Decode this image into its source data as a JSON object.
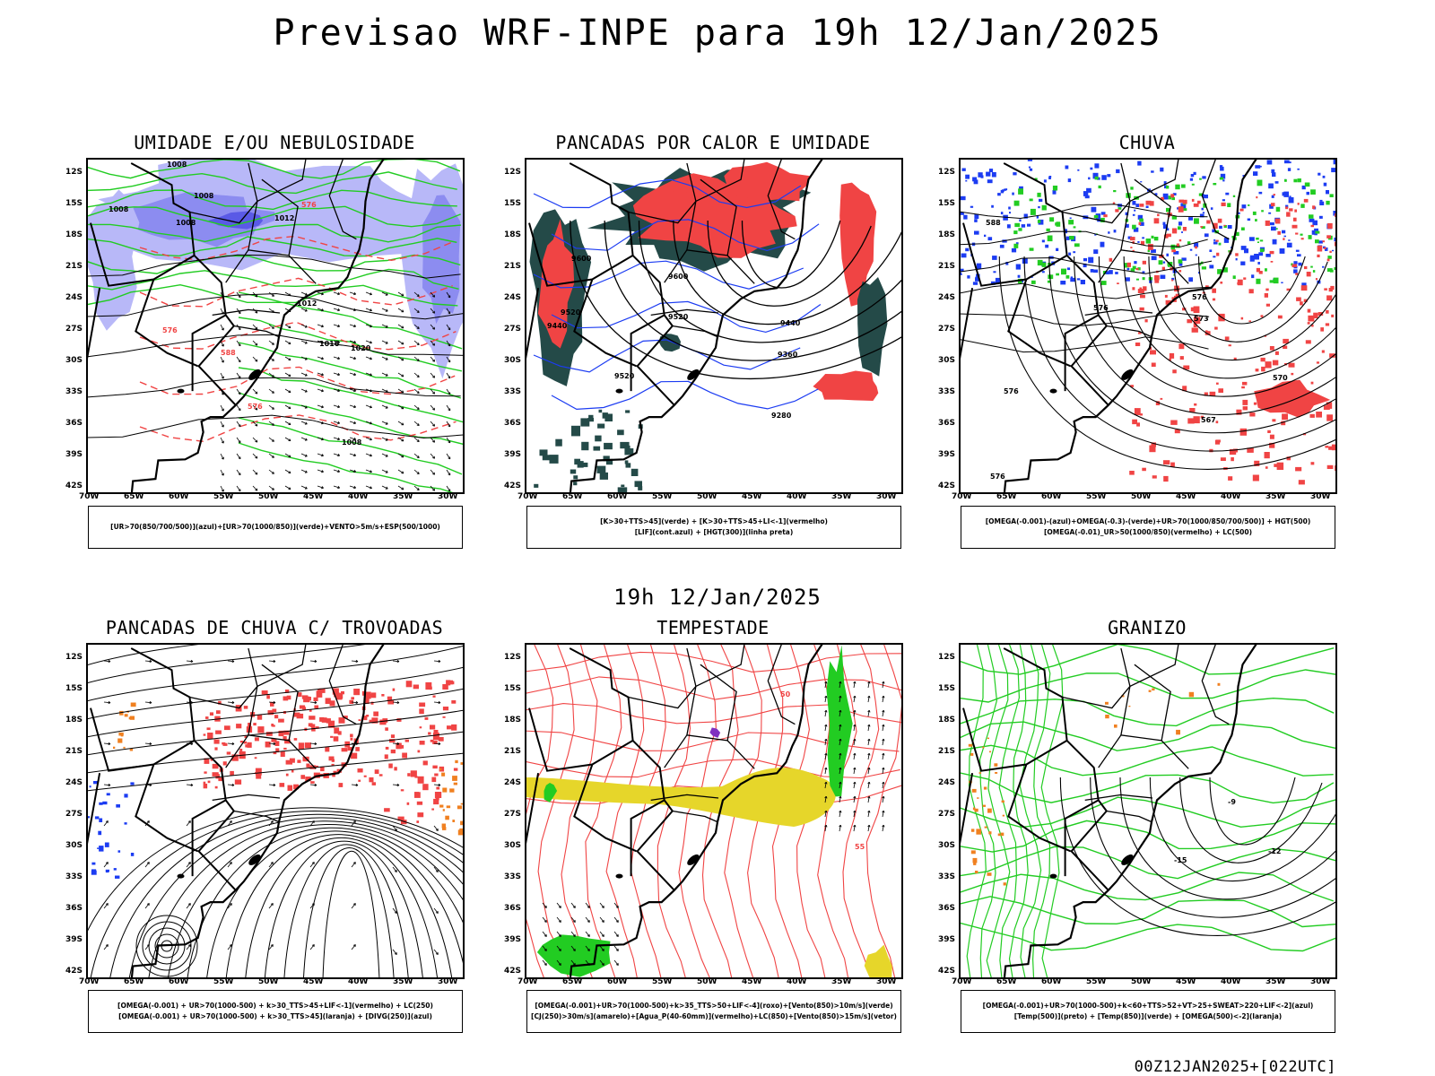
{
  "page": {
    "title": "Previsao WRF-INPE  para 19h 12/Jan/2025",
    "mid_title": "19h 12/Jan/2025",
    "footer": "00Z12JAN2025+[022UTC]"
  },
  "axes": {
    "lat_labels": [
      "12S",
      "15S",
      "18S",
      "21S",
      "24S",
      "27S",
      "30S",
      "33S",
      "36S",
      "39S",
      "42S"
    ],
    "lon_labels": [
      "70W",
      "65W",
      "60W",
      "55W",
      "50W",
      "45W",
      "40W",
      "35W",
      "30W"
    ]
  },
  "colors": {
    "humid_light": "#b8b8f8",
    "humid_mid": "#8c8cf0",
    "humid_dark": "#5a5ae6",
    "green": "#22cc22",
    "red": "#f04444",
    "dark_teal": "#244a48",
    "blue": "#1c3cf2",
    "yellow": "#e6d62a",
    "orange": "#f08020",
    "purple": "#8030c0",
    "contour": "#000000"
  },
  "panels": [
    {
      "title": "UMIDADE E/OU NEBULOSIDADE",
      "legend": [
        "[UR>70(850/700/500)](azul)+[UR>70(1000/850)](verde)+VENTO>5m/s+ESP(500/1000)"
      ],
      "contour_labels": [
        "1008",
        "1008",
        "1008",
        "1012",
        "1012",
        "1016",
        "1020",
        "1008",
        "576",
        "576",
        "576",
        "588",
        "1008"
      ]
    },
    {
      "title": "PANCADAS POR CALOR E UMIDADE",
      "legend": [
        "[K>30+TTS>45](verde) + [K>30+TTS>45+LI<-1](vermelho)",
        "[LIF](cont.azul) + [HGT(300)](linha preta)"
      ],
      "contour_labels": [
        "9600",
        "9600",
        "9520",
        "9520",
        "9440",
        "9360",
        "9280",
        "9520",
        "9440"
      ]
    },
    {
      "title": "CHUVA",
      "legend": [
        "[OMEGA(-0.001)-(azul)+OMEGA(-0.3)-(verde)+UR>70(1000/850/700/500)] + HGT(500)",
        "[OMEGA(-0.01)_UR>50(1000/850)(vermelho) + LC(500)"
      ],
      "contour_labels": [
        "576",
        "576",
        "573",
        "576",
        "570",
        "567",
        "588",
        "576"
      ]
    },
    {
      "title": "PANCADAS DE CHUVA C/ TROVOADAS",
      "legend": [
        "[OMEGA(-0.001) + UR>70(1000-500) + k>30_TTS>45+LIF<-1](vermelho) + LC(250)",
        "[OMEGA(-0.001) + UR>70(1000-500) + k>30_TTS>45](laranja) + [DIVG(250)](azul)"
      ],
      "contour_labels": []
    },
    {
      "title": "TEMPESTADE",
      "legend": [
        "[OMEGA(-0.001)+UR>70(1000-500)+k>35_TTS>50+LIF<-4](roxo)+[Vento(850)>10m/s](verde)",
        "[CJ(250)>30m/s](amarelo)+[Agua_P(40-60mm)](vermelho)+LC(850)+[Vento(850)>15m/s](vetor)"
      ],
      "contour_labels": [
        "50",
        "55"
      ]
    },
    {
      "title": "GRANIZO",
      "legend": [
        "[OMEGA(-0.001)+UR>70(1000-500)+k<60+TTS>52+VT>25+SWEAT>220+LIF<-2](azul)",
        "[Temp(500)](preto) + [Temp(850)](verde) + [OMEGA(500)<-2](laranja)"
      ],
      "contour_labels": [
        "-15",
        "-12",
        "-9"
      ]
    }
  ]
}
